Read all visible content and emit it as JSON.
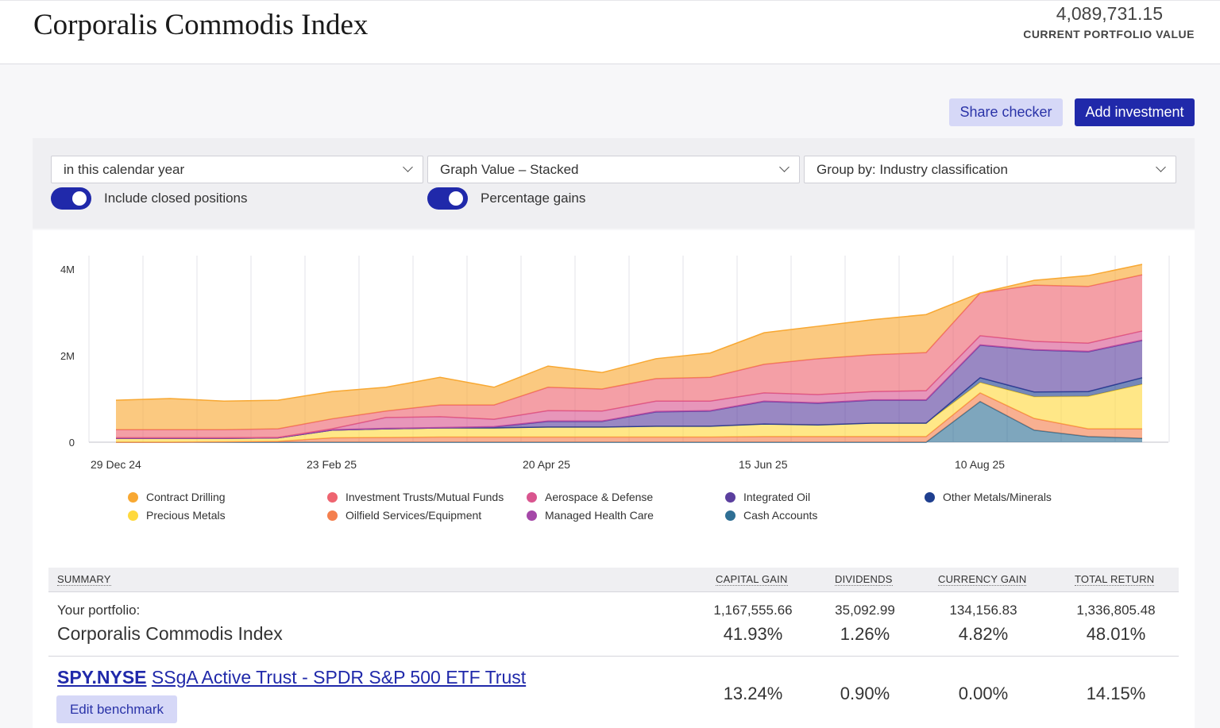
{
  "header": {
    "title": "Corporalis Commodis Index",
    "portfolio_value": "4,089,731.15",
    "portfolio_value_label": "CURRENT PORTFOLIO VALUE"
  },
  "actions": {
    "share_checker": "Share checker",
    "add_investment": "Add investment"
  },
  "filters": {
    "period": "in this calendar year",
    "graph_mode": "Graph Value – Stacked",
    "group_by": "Group by: Industry classification",
    "include_closed": {
      "label": "Include closed positions",
      "on": true
    },
    "percentage_gains": {
      "label": "Percentage gains",
      "on": true
    }
  },
  "chart_data": {
    "type": "area",
    "stacked": true,
    "grid": true,
    "legend_position": "bottom",
    "ylim": [
      0,
      4300000
    ],
    "yticks": [
      {
        "value": 0,
        "label": "0"
      },
      {
        "value": 2000000,
        "label": "2M"
      },
      {
        "value": 4000000,
        "label": "4M"
      }
    ],
    "x_count": 20,
    "xticks": [
      {
        "index": 0,
        "label": "29 Dec 24"
      },
      {
        "index": 4,
        "label": "23 Feb 25"
      },
      {
        "index": 8,
        "label": "20 Apr 25"
      },
      {
        "index": 12,
        "label": "15 Jun 25"
      },
      {
        "index": 16,
        "label": "10 Aug 25"
      }
    ],
    "series": [
      {
        "name": "Cash Accounts",
        "color": "#2f6f94",
        "values": [
          0,
          0,
          0,
          0,
          0,
          0,
          0,
          0,
          0,
          0,
          0,
          0,
          0,
          0,
          0,
          0,
          0.94,
          0.28,
          0.13,
          0.09
        ]
      },
      {
        "name": "Oilfield Services/Equipment",
        "color": "#f47f4e",
        "values": [
          0,
          0,
          0.01,
          0.02,
          0.1,
          0.11,
          0.12,
          0.12,
          0.12,
          0.12,
          0.12,
          0.12,
          0.13,
          0.13,
          0.13,
          0.13,
          0.2,
          0.27,
          0.18,
          0.22
        ]
      },
      {
        "name": "Precious Metals",
        "color": "#ffd93d",
        "values": [
          0.09,
          0.09,
          0.08,
          0.08,
          0.18,
          0.2,
          0.21,
          0.21,
          0.23,
          0.23,
          0.25,
          0.25,
          0.29,
          0.27,
          0.31,
          0.31,
          0.24,
          0.5,
          0.75,
          1.03
        ]
      },
      {
        "name": "Other Metals/Minerals",
        "color": "#1f3f8f",
        "values": [
          0,
          0,
          0,
          0,
          0,
          0,
          0,
          0,
          0,
          0,
          0,
          0,
          0,
          0,
          0,
          0,
          0.11,
          0.11,
          0.11,
          0.15
        ]
      },
      {
        "name": "Integrated Oil",
        "color": "#5b3f9e",
        "values": [
          0,
          0,
          0,
          0,
          0,
          0,
          0,
          0.02,
          0.13,
          0.13,
          0.33,
          0.35,
          0.52,
          0.5,
          0.53,
          0.53,
          0.75,
          0.97,
          0.92,
          0.86
        ]
      },
      {
        "name": "Managed Health Care",
        "color": "#a548a8",
        "values": [
          0.01,
          0.01,
          0.01,
          0.01,
          0.01,
          0.01,
          0.01,
          0.01,
          0.01,
          0.01,
          0.01,
          0.01,
          0.01,
          0.01,
          0.01,
          0.01,
          0.01,
          0.01,
          0.01,
          0.01
        ]
      },
      {
        "name": "Aerospace & Defense",
        "color": "#d9558f",
        "values": [
          0,
          0,
          0,
          0,
          0.02,
          0.25,
          0.25,
          0.17,
          0.24,
          0.23,
          0.24,
          0.22,
          0.19,
          0.19,
          0.19,
          0.21,
          0.21,
          0.19,
          0.19,
          0.21
        ]
      },
      {
        "name": "Investment Trusts/Mutual Funds",
        "color": "#ee6470",
        "values": [
          0.19,
          0.19,
          0.19,
          0.2,
          0.23,
          0.15,
          0.27,
          0.33,
          0.54,
          0.51,
          0.52,
          0.55,
          0.66,
          0.83,
          0.85,
          0.88,
          0.99,
          1.3,
          1.31,
          1.3
        ]
      },
      {
        "name": "Contract Drilling",
        "color": "#f8a832",
        "values": [
          0.68,
          0.72,
          0.66,
          0.66,
          0.63,
          0.55,
          0.64,
          0.41,
          0.49,
          0.38,
          0.46,
          0.56,
          0.73,
          0.75,
          0.81,
          0.88,
          0,
          0.11,
          0.25,
          0.24
        ]
      }
    ],
    "value_unit": "millions",
    "legend": [
      {
        "name": "Contract Drilling",
        "color": "#f8a832"
      },
      {
        "name": "Investment Trusts/Mutual Funds",
        "color": "#ee6470"
      },
      {
        "name": "Aerospace & Defense",
        "color": "#d9558f"
      },
      {
        "name": "Integrated Oil",
        "color": "#5b3f9e"
      },
      {
        "name": "Other Metals/Minerals",
        "color": "#1f3f8f"
      },
      {
        "name": "Precious Metals",
        "color": "#ffd93d"
      },
      {
        "name": "Oilfield Services/Equipment",
        "color": "#f47f4e"
      },
      {
        "name": "Managed Health Care",
        "color": "#a548a8"
      },
      {
        "name": "Cash Accounts",
        "color": "#2f6f94"
      }
    ]
  },
  "summary": {
    "headers": [
      "SUMMARY",
      "CAPITAL GAIN",
      "DIVIDENDS",
      "CURRENCY GAIN",
      "TOTAL RETURN"
    ],
    "portfolio_label": "Your portfolio:",
    "portfolio_name": "Corporalis Commodis Index",
    "portfolio_values": [
      "1,167,555.66",
      "35,092.99",
      "134,156.83",
      "1,336,805.48"
    ],
    "portfolio_pcts": [
      "41.93%",
      "1.26%",
      "4.82%",
      "48.01%"
    ],
    "benchmark_ticker": "SPY.NYSE",
    "benchmark_name": "SSgA Active Trust - SPDR S&P 500 ETF Trust",
    "benchmark_pcts": [
      "13.24%",
      "0.90%",
      "0.00%",
      "14.15%"
    ],
    "edit_benchmark": "Edit benchmark"
  }
}
